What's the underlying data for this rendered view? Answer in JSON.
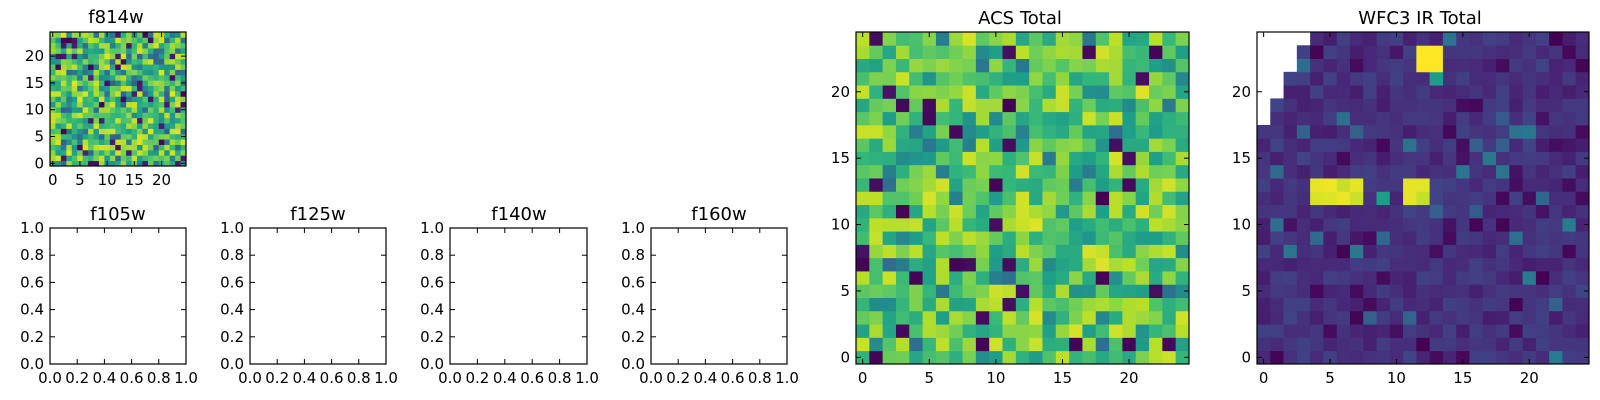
{
  "chart_data": [
    {
      "type": "heatmap",
      "title": "f814w",
      "grid_size": 25,
      "xticks": [
        "0",
        "5",
        "10",
        "15",
        "20"
      ],
      "yticks": [
        "0",
        "5",
        "10",
        "15",
        "20"
      ],
      "xlim": [
        -0.5,
        24.5
      ],
      "ylim": [
        -0.5,
        24.5
      ],
      "colormap": "viridis",
      "value_range": [
        0,
        1
      ],
      "seed": 11,
      "z": []
    },
    {
      "type": "empty",
      "title": "f105w",
      "xticks": [
        "0.0",
        "0.2",
        "0.4",
        "0.6",
        "0.8",
        "1.0"
      ],
      "yticks": [
        "0.0",
        "0.2",
        "0.4",
        "0.6",
        "0.8",
        "1.0"
      ],
      "xlim": [
        0,
        1
      ],
      "ylim": [
        0,
        1
      ]
    },
    {
      "type": "empty",
      "title": "f125w",
      "xticks": [
        "0.0",
        "0.2",
        "0.4",
        "0.6",
        "0.8",
        "1.0"
      ],
      "yticks": [
        "0.0",
        "0.2",
        "0.4",
        "0.6",
        "0.8",
        "1.0"
      ],
      "xlim": [
        0,
        1
      ],
      "ylim": [
        0,
        1
      ]
    },
    {
      "type": "empty",
      "title": "f140w",
      "xticks": [
        "0.0",
        "0.2",
        "0.4",
        "0.6",
        "0.8",
        "1.0"
      ],
      "yticks": [
        "0.0",
        "0.2",
        "0.4",
        "0.6",
        "0.8",
        "1.0"
      ],
      "xlim": [
        0,
        1
      ],
      "ylim": [
        0,
        1
      ]
    },
    {
      "type": "empty",
      "title": "f160w",
      "xticks": [
        "0.0",
        "0.2",
        "0.4",
        "0.6",
        "0.8",
        "1.0"
      ],
      "yticks": [
        "0.0",
        "0.2",
        "0.4",
        "0.6",
        "0.8",
        "1.0"
      ],
      "xlim": [
        0,
        1
      ],
      "ylim": [
        0,
        1
      ]
    },
    {
      "type": "heatmap",
      "title": "ACS Total",
      "grid_size": 25,
      "xticks": [
        "0",
        "5",
        "10",
        "15",
        "20"
      ],
      "yticks": [
        "0",
        "5",
        "10",
        "15",
        "20"
      ],
      "xlim": [
        -0.5,
        24.5
      ],
      "ylim": [
        -0.5,
        24.5
      ],
      "colormap": "viridis",
      "value_range": [
        0,
        1
      ],
      "seed": 37,
      "z": []
    },
    {
      "type": "heatmap",
      "title": "WFC3 IR Total",
      "grid_size": 25,
      "xticks": [
        "0",
        "5",
        "10",
        "15",
        "20"
      ],
      "yticks": [
        "0",
        "5",
        "10",
        "15",
        "20"
      ],
      "xlim": [
        -0.5,
        24.5
      ],
      "ylim": [
        -0.5,
        24.5
      ],
      "colormap": "viridis",
      "value_range": [
        0,
        1
      ],
      "seed": 73,
      "z": []
    }
  ]
}
